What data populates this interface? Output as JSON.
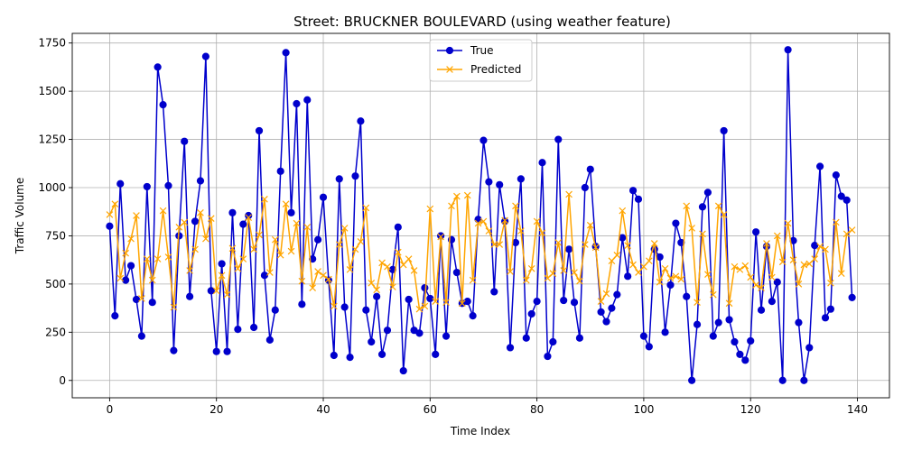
{
  "chart_data": {
    "type": "line",
    "title": "Street: BRUCKNER BOULEVARD (using weather feature)",
    "xlabel": "Time Index",
    "ylabel": "Traffic Volume",
    "xlim": [
      -7,
      146
    ],
    "ylim": [
      -90,
      1800
    ],
    "xticks": [
      0,
      20,
      40,
      60,
      80,
      100,
      120,
      140
    ],
    "yticks": [
      0,
      250,
      500,
      750,
      1000,
      1250,
      1500,
      1750
    ],
    "grid": true,
    "legend_position": "top-center",
    "series": [
      {
        "name": "True",
        "color": "#0000cc",
        "marker": "circle",
        "values": [
          800,
          335,
          1020,
          520,
          595,
          420,
          230,
          1005,
          405,
          1625,
          1430,
          1010,
          155,
          750,
          1240,
          435,
          825,
          1035,
          1680,
          465,
          150,
          605,
          150,
          870,
          265,
          810,
          855,
          275,
          1295,
          545,
          210,
          365,
          1085,
          1700,
          870,
          1435,
          395,
          1455,
          630,
          730,
          950,
          520,
          130,
          1045,
          380,
          120,
          1060,
          1345,
          365,
          200,
          435,
          135,
          260,
          575,
          795,
          50,
          420,
          260,
          245,
          480,
          425,
          135,
          750,
          230,
          730,
          560,
          400,
          410,
          335,
          835,
          1245,
          1030,
          460,
          1015,
          825,
          170,
          715,
          1045,
          220,
          345,
          410,
          1130,
          125,
          200,
          1250,
          415,
          680,
          405,
          220,
          1000,
          1095,
          695,
          355,
          305,
          375,
          445,
          740,
          540,
          985,
          940,
          230,
          175,
          680,
          640,
          250,
          495,
          815,
          715,
          435,
          0,
          290,
          900,
          975,
          230,
          300,
          1295,
          315,
          200,
          135,
          105,
          205,
          770,
          365,
          695,
          410,
          510,
          0,
          1715,
          725,
          300,
          0,
          170,
          700,
          1110,
          325,
          370,
          1065,
          955,
          935,
          430
        ]
      },
      {
        "name": "Predicted",
        "color": "#ffa500",
        "marker": "x",
        "values": [
          860,
          915,
          530,
          660,
          735,
          855,
          425,
          630,
          520,
          630,
          880,
          640,
          380,
          795,
          820,
          570,
          680,
          870,
          735,
          840,
          465,
          545,
          445,
          685,
          580,
          630,
          845,
          680,
          755,
          940,
          560,
          730,
          650,
          915,
          670,
          815,
          515,
          795,
          480,
          565,
          545,
          525,
          385,
          705,
          790,
          575,
          680,
          720,
          895,
          505,
          470,
          610,
          590,
          485,
          665,
          600,
          630,
          570,
          370,
          385,
          890,
          410,
          745,
          405,
          905,
          955,
          400,
          960,
          520,
          815,
          825,
          775,
          705,
          705,
          830,
          565,
          905,
          775,
          520,
          580,
          825,
          765,
          530,
          555,
          715,
          570,
          965,
          560,
          515,
          705,
          805,
          690,
          410,
          450,
          620,
          650,
          880,
          700,
          600,
          560,
          590,
          620,
          710,
          510,
          580,
          530,
          540,
          525,
          905,
          790,
          405,
          760,
          550,
          445,
          905,
          860,
          400,
          590,
          575,
          595,
          535,
          495,
          480,
          710,
          535,
          750,
          615,
          815,
          625,
          500,
          600,
          605,
          630,
          695,
          680,
          505,
          820,
          555,
          760,
          780
        ]
      }
    ]
  }
}
